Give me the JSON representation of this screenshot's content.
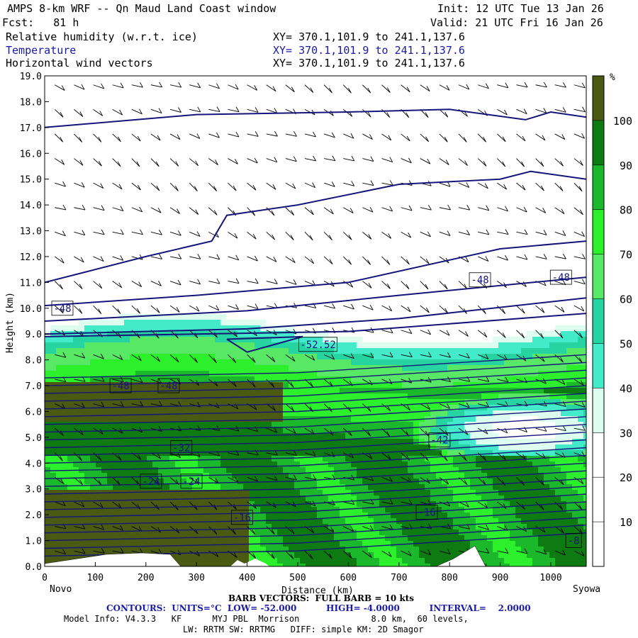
{
  "header": {
    "title": "AMPS 8-km WRF -- Qn Maud Land Coast window",
    "init": "Init: 12 UTC Tue 13 Jan 26",
    "fcst": "Fcst:   81 h",
    "valid": "Valid: 21 UTC Fri 16 Jan 26",
    "fields": [
      {
        "name": "Relative humidity (w.r.t. ice)",
        "xy": "XY= 370.1,101.9 to 241.1,137.6",
        "color": "#000000"
      },
      {
        "name": "Temperature",
        "xy": "XY= 370.1,101.9 to 241.1,137.6",
        "color": "#1a1aa8"
      },
      {
        "name": "Horizontal wind vectors",
        "xy": "XY= 370.1,101.9 to 241.1,137.6",
        "color": "#000000"
      }
    ]
  },
  "chart_data": {
    "type": "heatmap",
    "title": "Relative humidity (w.r.t. ice)",
    "xlabel": "Distance (km)",
    "ylabel": "Height (km)",
    "xlim": [
      0,
      1070
    ],
    "ylim": [
      0,
      19
    ],
    "x_ticks": [
      0,
      100,
      200,
      300,
      400,
      500,
      600,
      700,
      800,
      900,
      1000
    ],
    "y_ticks": [
      "0.0",
      "1.0",
      "2.0",
      "3.0",
      "4.0",
      "5.0",
      "6.0",
      "7.0",
      "8.0",
      "9.0",
      "10.0",
      "11.0",
      "12.0",
      "13.0",
      "14.0",
      "15.0",
      "16.0",
      "17.0",
      "18.0",
      "19.0"
    ],
    "endpoint_left": "Novo",
    "endpoint_right": "Syowa",
    "colorbar": {
      "unit": "%",
      "ticks": [
        10,
        20,
        30,
        40,
        50,
        60,
        70,
        80,
        90,
        100
      ],
      "bands": [
        {
          "from": 0,
          "to": 20,
          "color": "#ffffff"
        },
        {
          "from": 20,
          "to": 30,
          "color": "#ffffff"
        },
        {
          "from": 30,
          "to": 40,
          "color": "#ddfdf1"
        },
        {
          "from": 40,
          "to": 50,
          "color": "#43ebcb"
        },
        {
          "from": 50,
          "to": 60,
          "color": "#26d4a2"
        },
        {
          "from": 60,
          "to": 70,
          "color": "#58e866"
        },
        {
          "from": 70,
          "to": 80,
          "color": "#2cf02c"
        },
        {
          "from": 80,
          "to": 90,
          "color": "#1ab82a"
        },
        {
          "from": 90,
          "to": 100,
          "color": "#0d7a12"
        },
        {
          "from": 100,
          "to": 110,
          "color": "#4a5a12"
        }
      ]
    },
    "temperature_contours": {
      "units": "°C",
      "low": -52.0,
      "high": -4.0,
      "interval": 2.0,
      "labels": [
        "-48",
        "-48",
        "-48",
        "-48",
        "-48",
        "-52.52",
        "-32",
        "-42",
        "-24",
        "-24",
        "-16",
        "-16",
        "-8"
      ]
    },
    "wind_barbs": "FULL BARB = 10 kts"
  },
  "footer": {
    "barb_line": "BARB VECTORS:  FULL BARB = 10 kts",
    "contours_line": "CONTOURS:  UNITS=°C  LOW= -52.000          HIGH= -4.0000          INTERVAL=    2.0000",
    "model_info": "Model Info: V4.3.3   KF      MYJ PBL  Morrison              8.0 km,  60 levels,",
    "physics": "LW: RRTM SW: RRTMG   DIFF: simple KM: 2D Smagor"
  },
  "colors": {
    "contour_blue": "#15157a",
    "dark_olive": "#4a5a12",
    "terrain_white": "#ffffff"
  }
}
